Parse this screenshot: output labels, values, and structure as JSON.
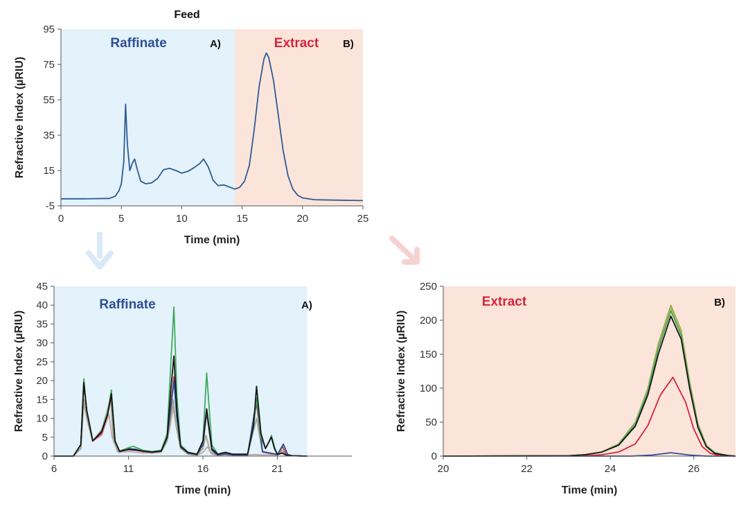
{
  "colors": {
    "raffinate_bg": "#e3f2fb",
    "extract_bg": "#fbe4da",
    "raffinate_text": "#2f4f95",
    "extract_text": "#d6243a",
    "down_arrow": "#d9e9f7",
    "diag_arrow": "#f7d2d2"
  },
  "chart_data": [
    {
      "type": "line",
      "title": "Feed",
      "xlabel": "Time (min)",
      "ylabel": "Refractive Index (µRIU)",
      "xlim": [
        0,
        25
      ],
      "ylim": [
        -5,
        95
      ],
      "xticks": [
        0,
        5,
        10,
        15,
        20,
        25
      ],
      "yticks": [
        -5,
        15,
        35,
        55,
        75,
        95
      ],
      "grid": false,
      "regions": [
        {
          "label": "Raffinate",
          "panel": "A)",
          "x": [
            0,
            14.4
          ],
          "color": "#e3f2fb",
          "text_color": "#2f4f95"
        },
        {
          "label": "Extract",
          "panel": "B)",
          "x": [
            14.4,
            25
          ],
          "color": "#fbe4da",
          "text_color": "#d6243a"
        }
      ],
      "series": [
        {
          "color": "#2d5a94",
          "x": [
            0,
            2,
            4,
            4.5,
            4.8,
            5.0,
            5.2,
            5.35,
            5.5,
            5.7,
            5.9,
            6.1,
            6.3,
            6.6,
            7.0,
            7.5,
            8.0,
            8.5,
            9.0,
            9.5,
            10.0,
            10.5,
            11.0,
            11.5,
            11.8,
            12.2,
            12.6,
            13.0,
            13.5,
            14.0,
            14.4,
            14.8,
            15.2,
            15.6,
            16.0,
            16.4,
            16.8,
            17.0,
            17.2,
            17.6,
            18.0,
            18.4,
            18.8,
            19.2,
            19.6,
            20.0,
            21.0,
            23.0,
            25.0
          ],
          "y": [
            -1,
            -1,
            -0.8,
            0.5,
            3.5,
            7.5,
            20,
            52.5,
            30,
            15,
            19,
            21.5,
            16,
            9,
            7.5,
            8,
            10.5,
            15.5,
            16.2,
            15,
            13.5,
            14.5,
            16.5,
            19,
            21.5,
            17,
            9.5,
            6.5,
            6.8,
            5.5,
            4.5,
            5.5,
            9,
            18,
            38,
            62,
            78,
            81.5,
            79,
            66,
            46,
            26,
            12,
            4.5,
            1,
            -0.5,
            -1.5,
            -1.8,
            -2
          ]
        }
      ]
    },
    {
      "type": "line",
      "title": "",
      "xlabel": "Time (min)",
      "ylabel": "Refractive Index (µRIU)",
      "xlim": [
        6,
        26
      ],
      "ylim": [
        0,
        45
      ],
      "xticks": [
        6,
        11,
        16,
        21
      ],
      "yticks": [
        0,
        5,
        10,
        15,
        20,
        25,
        30,
        35,
        40,
        45
      ],
      "grid": false,
      "region": {
        "label": "Raffinate",
        "panel": "A)",
        "x": [
          6,
          23
        ],
        "color": "#e3f2fb",
        "text_color": "#2f4f95"
      },
      "series": [
        {
          "color": "#c9a4a4",
          "x": [
            6,
            7.3,
            7.8,
            8.0,
            8.2,
            8.6,
            9.2,
            9.5,
            9.7,
            9.9,
            10.3,
            11.0,
            11.5,
            12.0,
            12.6,
            13.2,
            13.6,
            13.8,
            14.0,
            14.2,
            14.5,
            15.0,
            15.6,
            16.0,
            16.3,
            16.6,
            17.0,
            17.5,
            18.0,
            19.0,
            19.5,
            20.0,
            21.0,
            21.3,
            21.5,
            22.0,
            23.0
          ],
          "y": [
            0,
            0,
            2,
            14,
            10,
            4,
            5.5,
            9,
            11,
            5,
            1,
            1.2,
            1,
            0.8,
            0.8,
            1,
            4,
            8,
            13,
            8,
            2,
            0.5,
            0.2,
            1,
            2.5,
            0.5,
            0.2,
            0.3,
            0.2,
            0.3,
            0.4,
            0.3,
            0.3,
            1,
            0.3,
            0.1,
            0
          ]
        },
        {
          "color": "#a0a38a",
          "x": [
            6,
            7.3,
            7.8,
            8.0,
            8.2,
            8.6,
            9.2,
            9.5,
            9.8,
            10.0,
            10.3,
            11.0,
            11.5,
            12.0,
            12.6,
            13.2,
            13.6,
            13.8,
            14.0,
            14.2,
            14.5,
            15.0,
            15.6,
            16.0,
            16.2,
            16.5,
            17.0,
            17.5,
            18.0,
            19.0,
            19.6,
            20.0,
            21.0,
            21.3,
            21.6,
            22.0,
            23.0
          ],
          "y": [
            0,
            0,
            2,
            15,
            10,
            4,
            7,
            11,
            15.5,
            4,
            1.2,
            1.6,
            1.5,
            1.2,
            1,
            1.2,
            4,
            9,
            15,
            8,
            2,
            0.6,
            0.3,
            2,
            5.5,
            1,
            0.3,
            0.5,
            0.3,
            0.4,
            10,
            1,
            0.3,
            1.5,
            0.4,
            0.1,
            0
          ]
        },
        {
          "color": "#d6243a",
          "x": [
            6,
            7.3,
            7.8,
            8.0,
            8.2,
            8.6,
            9.2,
            9.6,
            9.85,
            10.1,
            10.4,
            11.0,
            11.5,
            12.0,
            12.6,
            13.2,
            13.6,
            13.85,
            14.05,
            14.25,
            14.5,
            15.0,
            15.6,
            16.0,
            16.25,
            16.6,
            17.0,
            17.5,
            18.0,
            19.0,
            19.6,
            20.0,
            21.0,
            21.35,
            21.6,
            22.0,
            23.0
          ],
          "y": [
            0,
            0,
            3,
            19,
            12,
            4,
            6,
            11,
            16,
            4,
            1.2,
            1.8,
            1.6,
            1.2,
            1,
            1.3,
            5,
            14,
            21,
            10,
            2.5,
            0.8,
            0.4,
            3,
            11.5,
            1.5,
            0.3,
            0.6,
            0.3,
            0.3,
            14,
            1.2,
            0.4,
            2.5,
            0.4,
            0.1,
            0
          ]
        },
        {
          "color": "#2d4f9e",
          "x": [
            6,
            7.3,
            7.8,
            8.0,
            8.2,
            8.6,
            9.2,
            9.6,
            9.85,
            10.1,
            10.4,
            11.0,
            11.5,
            12.0,
            12.6,
            13.2,
            13.6,
            13.85,
            14.05,
            14.25,
            14.5,
            15.0,
            15.6,
            16.0,
            16.25,
            16.6,
            17.0,
            17.5,
            18.0,
            19.0,
            19.6,
            20.0,
            21.0,
            21.4,
            21.7,
            22.0,
            23.0
          ],
          "y": [
            0,
            0,
            3,
            19.5,
            12,
            4,
            6.5,
            11,
            16.5,
            4,
            1.2,
            2,
            1.8,
            1.3,
            1,
            1.3,
            5,
            13,
            20,
            10,
            2.5,
            0.8,
            0.4,
            3,
            12,
            1.5,
            0.3,
            0.6,
            0.3,
            0.3,
            15,
            1.2,
            0.4,
            3.2,
            0.4,
            0.1,
            0
          ]
        },
        {
          "color": "#3fa95e",
          "x": [
            6,
            7.3,
            7.8,
            8.0,
            8.2,
            8.6,
            9.2,
            9.6,
            9.85,
            10.1,
            10.4,
            11.0,
            11.3,
            11.7,
            12.0,
            12.6,
            13.2,
            13.6,
            13.85,
            14.05,
            14.25,
            14.5,
            15.0,
            15.6,
            16.0,
            16.25,
            16.6,
            17.0,
            17.5,
            18.0,
            19.0,
            19.4,
            19.6,
            19.9,
            20.2,
            20.4,
            20.6,
            20.8,
            21.0,
            21.3,
            21.6,
            22.0,
            23.0
          ],
          "y": [
            0,
            0,
            3,
            20.5,
            12,
            4,
            6.5,
            11.5,
            17.5,
            4,
            1.3,
            2.2,
            2.6,
            2,
            1.5,
            1.2,
            1.5,
            6,
            25,
            39.5,
            16,
            3,
            1,
            0.5,
            4,
            22,
            3,
            0.5,
            1,
            0.5,
            0.5,
            8,
            15.5,
            5,
            2,
            3.5,
            5.5,
            2.5,
            0.4,
            0.8,
            0.3,
            0.1,
            0
          ]
        },
        {
          "color": "#151515",
          "x": [
            6,
            7.3,
            7.8,
            8.0,
            8.2,
            8.6,
            9.2,
            9.6,
            9.85,
            10.1,
            10.4,
            11.0,
            11.5,
            12.0,
            12.6,
            13.2,
            13.6,
            13.85,
            14.05,
            14.25,
            14.5,
            15.0,
            15.6,
            16.0,
            16.25,
            16.6,
            17.0,
            17.5,
            18.0,
            19.0,
            19.4,
            19.6,
            19.9,
            20.2,
            20.4,
            20.6,
            20.8,
            21.0,
            21.3,
            21.6,
            22.0,
            23.0
          ],
          "y": [
            0,
            0,
            3,
            19.5,
            12,
            4,
            6.5,
            11,
            16.5,
            4,
            1.3,
            1.8,
            1.6,
            1.3,
            1.1,
            1.4,
            5,
            18,
            26.5,
            12,
            2.5,
            1,
            0.5,
            4,
            12.5,
            2,
            0.5,
            1,
            0.5,
            0.5,
            8,
            18.5,
            6,
            2,
            3.5,
            5,
            2,
            0.4,
            0.8,
            0.3,
            0.1,
            0
          ]
        }
      ]
    },
    {
      "type": "line",
      "title": "",
      "xlabel": "Time (min)",
      "ylabel": "Refractive Index (µRIU)",
      "xlim": [
        20,
        27
      ],
      "ylim": [
        0,
        250
      ],
      "xticks": [
        20,
        22,
        24,
        26
      ],
      "yticks": [
        0,
        50,
        100,
        150,
        200,
        250
      ],
      "grid": false,
      "region": {
        "label": "Extract",
        "panel": "B)",
        "x": [
          20,
          27
        ],
        "color": "#fbe4da",
        "text_color": "#d6243a"
      },
      "series": [
        {
          "color": "#2d4f9e",
          "x": [
            20,
            24.5,
            25.0,
            25.45,
            25.9,
            26.3,
            27
          ],
          "y": [
            0,
            0,
            1.5,
            5,
            1.5,
            0,
            0
          ]
        },
        {
          "color": "#d6243a",
          "x": [
            20,
            23.4,
            23.8,
            24.2,
            24.6,
            24.9,
            25.2,
            25.5,
            25.8,
            26.0,
            26.2,
            26.4,
            26.6,
            27
          ],
          "y": [
            0,
            0.5,
            2,
            6,
            18,
            45,
            90,
            116,
            80,
            40,
            14,
            4,
            1,
            0
          ]
        },
        {
          "color": "#8fae46",
          "x": [
            20,
            23.0,
            23.4,
            23.8,
            24.2,
            24.6,
            24.9,
            25.15,
            25.45,
            25.7,
            25.9,
            26.1,
            26.3,
            26.5,
            26.8,
            27
          ],
          "y": [
            0,
            0.5,
            2,
            6,
            18,
            50,
            100,
            165,
            222,
            185,
            110,
            48,
            16,
            5,
            1,
            0
          ]
        },
        {
          "color": "#c6b063",
          "x": [
            20,
            23.0,
            23.4,
            23.8,
            24.2,
            24.6,
            24.9,
            25.15,
            25.45,
            25.7,
            25.9,
            26.1,
            26.3,
            26.5,
            26.8,
            27
          ],
          "y": [
            0,
            0.5,
            2,
            6,
            17,
            48,
            97,
            160,
            218,
            182,
            108,
            46,
            15,
            5,
            1,
            0
          ]
        },
        {
          "color": "#3fa95e",
          "x": [
            20,
            23.0,
            23.4,
            23.8,
            24.2,
            24.6,
            24.9,
            25.15,
            25.45,
            25.7,
            25.9,
            26.1,
            26.3,
            26.5,
            26.8,
            27
          ],
          "y": [
            0,
            0.5,
            2,
            6,
            17,
            47,
            95,
            158,
            214,
            178,
            105,
            45,
            15,
            5,
            1,
            0
          ]
        },
        {
          "color": "#151515",
          "x": [
            20,
            23.0,
            23.4,
            23.8,
            24.2,
            24.6,
            24.9,
            25.15,
            25.45,
            25.7,
            25.9,
            26.1,
            26.3,
            26.5,
            26.8,
            27
          ],
          "y": [
            0,
            0.5,
            2,
            6,
            16,
            44,
            90,
            150,
            206,
            172,
            100,
            42,
            14,
            4,
            1,
            0
          ]
        }
      ]
    }
  ]
}
